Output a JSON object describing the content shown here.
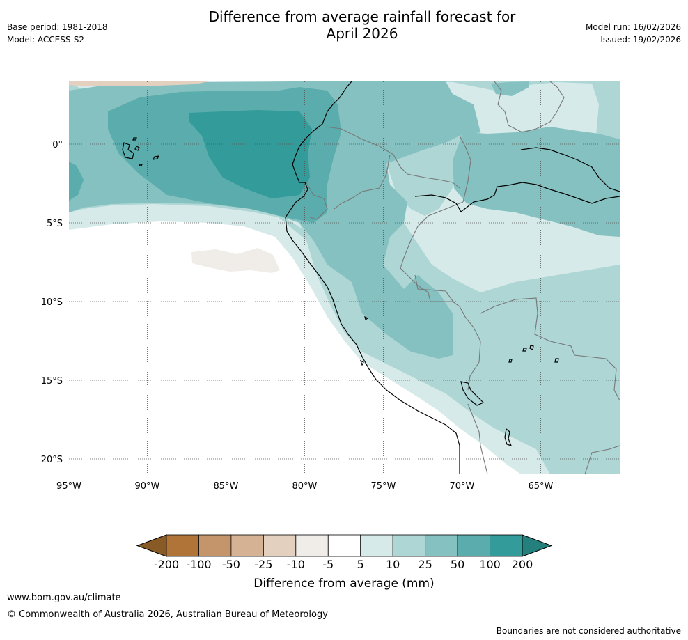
{
  "header": {
    "title_line1": "Difference from average rainfall forecast for",
    "title_line2": "April 2026",
    "base_period": "Base period: 1981-2018",
    "model": "Model: ACCESS-S2",
    "model_run": "Model run: 16/02/2026",
    "issued": "Issued: 19/02/2026"
  },
  "map": {
    "lon_labels": [
      "95°W",
      "90°W",
      "85°W",
      "80°W",
      "75°W",
      "70°W",
      "65°W"
    ],
    "lat_labels": [
      "0°",
      "5°S",
      "10°S",
      "15°S",
      "20°S"
    ],
    "extent": {
      "lon_min": -95,
      "lon_max": -60,
      "lat_min": -21,
      "lat_max": 4
    }
  },
  "legend": {
    "ticks": [
      "-200",
      "-100",
      "-50",
      "-25",
      "-10",
      "-5",
      "5",
      "10",
      "25",
      "50",
      "100",
      "200"
    ],
    "colors": [
      "#875a26",
      "#b07438",
      "#c4956a",
      "#d5b293",
      "#e4d0bf",
      "#f0ede8",
      "#ffffff",
      "#d6eae9",
      "#add6d5",
      "#85c1c0",
      "#5aadac",
      "#339b99",
      "#24807d"
    ],
    "label": "Difference from average (mm)"
  },
  "footer": {
    "url": "www.bom.gov.au/climate",
    "copyright": "© Commonwealth of Australia 2026, Australian Bureau of Meteorology",
    "note": "Boundaries are not considered authoritative"
  }
}
